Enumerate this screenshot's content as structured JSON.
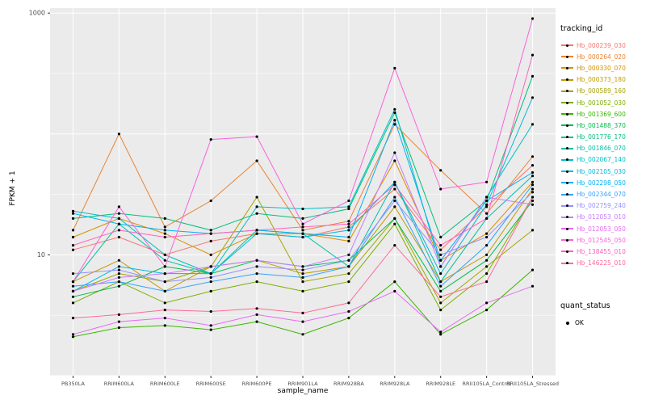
{
  "figure": {
    "panel_bg": "#EBEBEB",
    "grid_major_color": "#FFFFFF",
    "grid_minor_color": "#FFFFFF",
    "axis_text_color": "#4D4D4D",
    "tick_mark_color": "#333333",
    "point_color": "#000000"
  },
  "chart_data": {
    "type": "line",
    "title": "",
    "xlabel": "sample_name",
    "ylabel": "FPKM + 1",
    "y_scale": "log10",
    "ylim": [
      1,
      1100
    ],
    "grid": "on",
    "legend_position": "right",
    "y_tick_labels": [
      {
        "value": 1000,
        "label": "1000"
      },
      {
        "value": 10,
        "label": "10"
      }
    ],
    "y_grid_major": [
      1,
      10,
      100,
      1000
    ],
    "y_grid_minor": [
      3.162,
      31.62,
      316.2
    ],
    "categories": [
      "PB350LA",
      "RRIM600LA",
      "RRIM600LE",
      "RRIM600SE",
      "RRIM600PE",
      "RRIM901LA",
      "RRIM928BA",
      "RRIM928LA",
      "RRIM928LE",
      "RRII105LA_Control",
      "RRII105LA_Stressed"
    ],
    "legend": {
      "title": "tracking_id"
    },
    "quant_legend": {
      "title": "quant_status",
      "items": [
        "OK"
      ]
    },
    "series": [
      {
        "name": "Hb_000239_030",
        "color": "#F8766D",
        "values": [
          11,
          14,
          10,
          13,
          15,
          14,
          17,
          35,
          11,
          25,
          55
        ]
      },
      {
        "name": "Hb_000264_020",
        "color": "#EA8331",
        "values": [
          16,
          100,
          17,
          28,
          60,
          16,
          19,
          120,
          50,
          22,
          65
        ]
      },
      {
        "name": "Hb_000330_070",
        "color": "#D89000",
        "values": [
          14,
          20,
          15,
          10,
          15,
          15,
          13,
          60,
          9,
          15,
          40
        ]
      },
      {
        "name": "Hb_000373_180",
        "color": "#C09B00",
        "values": [
          6,
          9,
          5,
          8,
          9,
          7,
          8,
          25,
          6,
          10,
          35
        ]
      },
      {
        "name": "Hb_000589_160",
        "color": "#A3A500",
        "values": [
          5,
          7,
          6,
          8,
          30,
          6,
          7,
          20,
          4,
          8,
          16
        ]
      },
      {
        "name": "Hb_001052_030",
        "color": "#7CAE00",
        "values": [
          4,
          6,
          4,
          5,
          6,
          5,
          6,
          18,
          3.5,
          7,
          30
        ]
      },
      {
        "name": "Hb_001369_600",
        "color": "#39B600",
        "values": [
          2.1,
          2.5,
          2.6,
          2.4,
          2.8,
          2.2,
          3,
          6,
          2.2,
          3.5,
          7.5
        ]
      },
      {
        "name": "Hb_001488_370",
        "color": "#00BB4E",
        "values": [
          4.5,
          5.5,
          8,
          7,
          9,
          8,
          9,
          20,
          5,
          9,
          28
        ]
      },
      {
        "name": "Hb_001776_170",
        "color": "#00BF7D",
        "values": [
          20,
          22,
          20,
          16,
          22,
          20,
          24,
          150,
          14,
          28,
          300
        ]
      },
      {
        "name": "Hb_001846_070",
        "color": "#00C1A3",
        "values": [
          6,
          18,
          9,
          7,
          16,
          15,
          8,
          40,
          6,
          20,
          45
        ]
      },
      {
        "name": "Hb_002067_140",
        "color": "#00BFC4",
        "values": [
          23,
          20,
          10,
          7,
          25,
          24,
          25,
          160,
          8,
          30,
          120
        ]
      },
      {
        "name": "Hb_002105_030",
        "color": "#00BAE0",
        "values": [
          5,
          8,
          7,
          7,
          15,
          14,
          16,
          40,
          7,
          26,
          200
        ]
      },
      {
        "name": "Hb_002298_050",
        "color": "#00B0F6",
        "values": [
          22,
          18,
          16,
          15,
          16,
          15,
          14,
          130,
          9,
          28,
          48
        ]
      },
      {
        "name": "Hb_002344_070",
        "color": "#35A2FF",
        "values": [
          5.5,
          6,
          5,
          6,
          7,
          6.5,
          8,
          30,
          5.5,
          12,
          38
        ]
      },
      {
        "name": "Hb_002759_240",
        "color": "#9590FF",
        "values": [
          7,
          7.5,
          6,
          6.5,
          8,
          7.5,
          9,
          28,
          10,
          14,
          33
        ]
      },
      {
        "name": "Hb_012053_010",
        "color": "#C77CFF",
        "values": [
          5,
          6.5,
          7,
          8,
          9,
          8,
          10,
          70,
          8,
          30,
          26
        ]
      },
      {
        "name": "Hb_012053_050",
        "color": "#E76BF3",
        "values": [
          2.2,
          2.8,
          3,
          2.6,
          3.2,
          2.8,
          3.4,
          5,
          2.3,
          4,
          5.5
        ]
      },
      {
        "name": "Hb_012545_050",
        "color": "#FA62DB",
        "values": [
          6,
          25,
          8,
          90,
          95,
          18,
          28,
          350,
          35,
          40,
          900
        ]
      },
      {
        "name": "Hb_138455_010",
        "color": "#FF62BC",
        "values": [
          12,
          16,
          14,
          15,
          16,
          17,
          18,
          38,
          12,
          20,
          450
        ]
      },
      {
        "name": "Hb_146225_010",
        "color": "#FF6A98",
        "values": [
          3,
          3.2,
          3.5,
          3.4,
          3.6,
          3.3,
          4,
          12,
          4.5,
          6,
          30
        ]
      }
    ]
  }
}
